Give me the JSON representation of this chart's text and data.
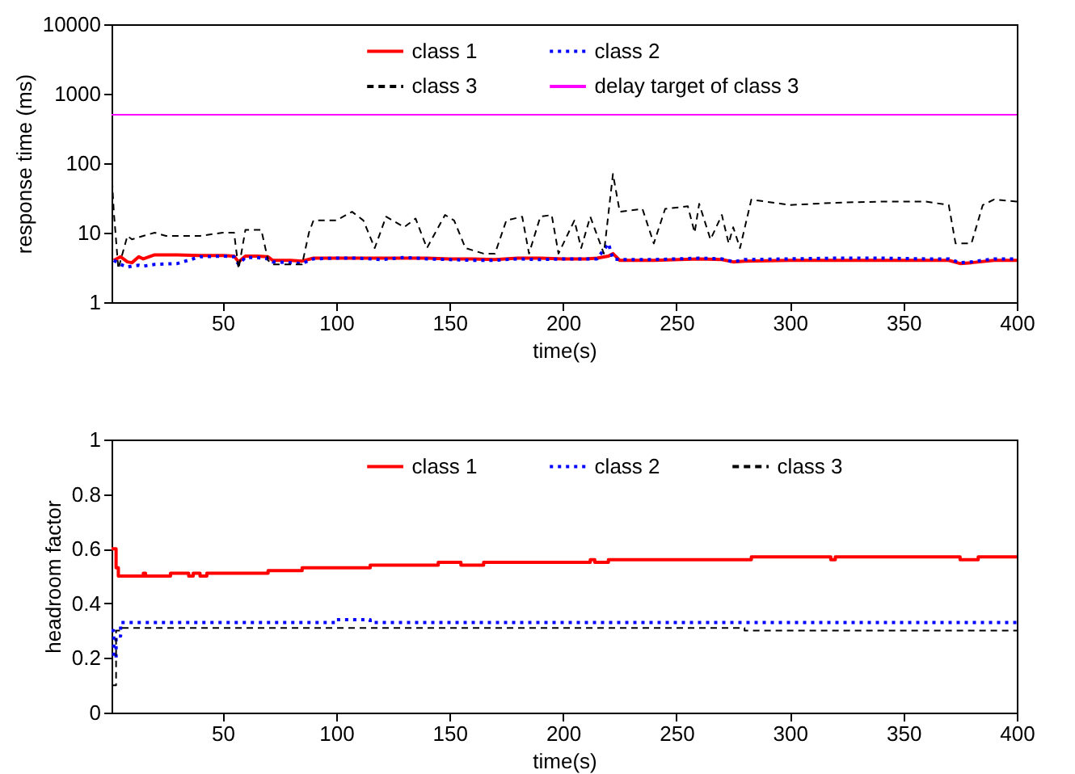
{
  "chart_data": [
    {
      "type": "line",
      "xlabel": "time(s)",
      "ylabel": "response time (ms)",
      "xlim": [
        1,
        400
      ],
      "xticks": [
        50,
        100,
        150,
        200,
        250,
        300,
        350,
        400
      ],
      "ylim": [
        1,
        10000
      ],
      "yticks": [
        1,
        10,
        100,
        1000,
        10000
      ],
      "log": "y",
      "grid": false,
      "legend": "top",
      "series": [
        {
          "name": "class 1",
          "color": "#ff0000",
          "line_style": "solid",
          "x": [
            2,
            5,
            8,
            10,
            13,
            15,
            20,
            30,
            40,
            50,
            55,
            57,
            60,
            65,
            70,
            72,
            80,
            85,
            90,
            100,
            110,
            120,
            130,
            140,
            150,
            160,
            170,
            180,
            190,
            200,
            210,
            215,
            220,
            222,
            225,
            240,
            260,
            270,
            275,
            280,
            300,
            320,
            340,
            360,
            370,
            375,
            380,
            390,
            400
          ],
          "values": [
            4,
            4.5,
            3.8,
            3.7,
            4.5,
            4.2,
            4.8,
            4.8,
            4.7,
            4.7,
            4.6,
            3.8,
            4.6,
            4.6,
            4.5,
            4,
            4,
            3.9,
            4.3,
            4.3,
            4.3,
            4.3,
            4.3,
            4.3,
            4.2,
            4.2,
            4.1,
            4.3,
            4.3,
            4.2,
            4.2,
            4.3,
            4.6,
            5,
            4,
            4,
            4.2,
            4.1,
            3.8,
            3.9,
            4,
            4,
            4,
            4,
            4,
            3.6,
            3.7,
            4,
            4
          ]
        },
        {
          "name": "class 2",
          "color": "#0000ff",
          "line_style": "dotted",
          "x": [
            2,
            5,
            8,
            10,
            13,
            15,
            20,
            30,
            40,
            50,
            55,
            57,
            60,
            65,
            70,
            72,
            80,
            85,
            90,
            100,
            110,
            120,
            130,
            140,
            150,
            160,
            170,
            180,
            190,
            200,
            210,
            215,
            220,
            222,
            225,
            240,
            260,
            270,
            275,
            280,
            300,
            320,
            340,
            360,
            370,
            375,
            380,
            390,
            400
          ],
          "values": [
            4,
            3.5,
            3.2,
            3.3,
            3.4,
            3.3,
            3.5,
            3.6,
            4.5,
            4.6,
            4.5,
            3.5,
            4.4,
            4.4,
            4.2,
            3.8,
            3.7,
            3.6,
            4.2,
            4.3,
            4.3,
            4.1,
            4.4,
            4.2,
            4.1,
            4,
            4,
            4.2,
            4.1,
            4.2,
            4.2,
            4.2,
            7,
            4.2,
            4.1,
            4.1,
            4.3,
            4.2,
            3.8,
            4.1,
            4.2,
            4.3,
            4.3,
            4.2,
            4.2,
            3.7,
            3.8,
            4.2,
            4.2
          ]
        },
        {
          "name": "class 3",
          "color": "#000000",
          "line_style": "dashed",
          "x": [
            1,
            2,
            4,
            5,
            8,
            10,
            15,
            20,
            25,
            30,
            40,
            50,
            55,
            57,
            60,
            67,
            70,
            72,
            80,
            85,
            88,
            90,
            100,
            107,
            112,
            117,
            122,
            130,
            135,
            140,
            148,
            152,
            157,
            165,
            170,
            175,
            182,
            185,
            190,
            195,
            198,
            205,
            208,
            212,
            218,
            222,
            225,
            235,
            240,
            245,
            255,
            258,
            260,
            265,
            270,
            273,
            275,
            278,
            283,
            300,
            320,
            340,
            360,
            370,
            373,
            380,
            385,
            390,
            400
          ],
          "values": [
            80,
            20,
            3,
            4,
            9,
            8,
            9,
            10,
            9,
            9,
            9,
            10,
            10,
            3,
            11,
            11,
            4,
            3.5,
            3.5,
            3.5,
            10,
            15,
            15,
            20,
            15,
            6,
            17,
            12,
            16,
            6,
            18,
            15,
            6,
            5,
            5,
            15,
            17,
            5,
            17,
            18,
            5,
            15,
            6,
            17,
            5,
            70,
            20,
            22,
            7,
            22,
            24,
            10,
            26,
            8,
            18,
            7,
            12,
            6,
            30,
            25,
            27,
            28,
            28,
            25,
            7,
            7,
            25,
            30,
            28
          ]
        }
      ],
      "ref_lines": [
        {
          "axis": "y",
          "value": 500,
          "label": "delay target of class 3",
          "color": "#ff00ff",
          "line_style": "solid"
        }
      ]
    },
    {
      "type": "step",
      "xlabel": "time(s)",
      "ylabel": "headroom factor",
      "xlim": [
        1,
        400
      ],
      "xticks": [
        50,
        100,
        150,
        200,
        250,
        300,
        350,
        400
      ],
      "ylim": [
        0,
        1
      ],
      "yticks": [
        0,
        0.2,
        0.4,
        0.6,
        0.8,
        1
      ],
      "grid": false,
      "legend": "top",
      "series": [
        {
          "name": "class 1",
          "color": "#ff0000",
          "line_style": "solid",
          "x": [
            1,
            3,
            4,
            15,
            16,
            18,
            27,
            35,
            37,
            40,
            43,
            70,
            85,
            115,
            145,
            155,
            165,
            212,
            214,
            220,
            283,
            318,
            320,
            375,
            383,
            400
          ],
          "values": [
            0.6,
            0.53,
            0.5,
            0.51,
            0.5,
            0.5,
            0.51,
            0.5,
            0.51,
            0.5,
            0.51,
            0.52,
            0.53,
            0.54,
            0.55,
            0.54,
            0.55,
            0.56,
            0.55,
            0.56,
            0.57,
            0.56,
            0.57,
            0.56,
            0.57,
            0.57
          ]
        },
        {
          "name": "class 2",
          "color": "#0000ff",
          "line_style": "dotted",
          "x": [
            1,
            2,
            3,
            5,
            100,
            115,
            400
          ],
          "values": [
            0.3,
            0.2,
            0.28,
            0.33,
            0.34,
            0.33,
            0.33
          ]
        },
        {
          "name": "class 3",
          "color": "#000000",
          "line_style": "dashed",
          "x": [
            1,
            3,
            5,
            280,
            400
          ],
          "values": [
            0.1,
            0.3,
            0.31,
            0.3,
            0.3
          ]
        }
      ]
    }
  ]
}
